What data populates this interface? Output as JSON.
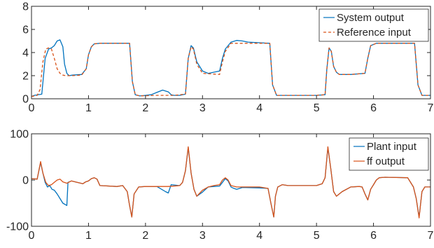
{
  "chart_data": [
    {
      "type": "line",
      "xlim": [
        0,
        7
      ],
      "ylim": [
        0,
        8
      ],
      "x_ticks": [
        0,
        1,
        2,
        3,
        4,
        5,
        6,
        7
      ],
      "y_ticks": [
        0,
        2,
        4,
        6,
        8
      ],
      "grid": false,
      "legend_position": "top-right",
      "series": [
        {
          "name": "System output",
          "color": "#0072BD",
          "style": "solid",
          "x": [
            0,
            0.05,
            0.18,
            0.24,
            0.3,
            0.35,
            0.4,
            0.45,
            0.5,
            0.55,
            0.58,
            0.62,
            0.66,
            0.72,
            0.88,
            0.96,
            1.0,
            1.05,
            1.1,
            1.2,
            1.5,
            1.72,
            1.77,
            1.82,
            1.9,
            2.0,
            2.1,
            2.2,
            2.3,
            2.4,
            2.45,
            2.5,
            2.6,
            2.7,
            2.75,
            2.8,
            2.84,
            2.9,
            3.0,
            3.1,
            3.3,
            3.35,
            3.4,
            3.5,
            3.6,
            3.7,
            3.8,
            4.0,
            4.18,
            4.23,
            4.3,
            4.5,
            5.0,
            5.15,
            5.18,
            5.22,
            5.26,
            5.3,
            5.35,
            5.4,
            5.5,
            5.6,
            5.85,
            5.9,
            5.95,
            6.05,
            6.2,
            6.5,
            6.72,
            6.78,
            6.85,
            7.0
          ],
          "y": [
            0.2,
            0.3,
            0.4,
            3.5,
            4.3,
            4.4,
            4.6,
            5.0,
            5.1,
            4.5,
            3.0,
            2.2,
            2.0,
            2.05,
            2.1,
            2.6,
            3.8,
            4.5,
            4.75,
            4.8,
            4.8,
            4.8,
            1.5,
            0.35,
            0.25,
            0.3,
            0.35,
            0.55,
            0.75,
            0.6,
            0.35,
            0.3,
            0.3,
            0.4,
            3.5,
            4.6,
            4.4,
            3.2,
            2.4,
            2.2,
            2.4,
            3.5,
            4.3,
            4.9,
            5.05,
            5.0,
            4.9,
            4.85,
            4.8,
            1.2,
            0.3,
            0.3,
            0.3,
            0.35,
            2.5,
            4.4,
            4.1,
            2.8,
            2.3,
            2.1,
            2.1,
            2.1,
            2.2,
            3.5,
            4.6,
            4.8,
            4.8,
            4.8,
            4.8,
            1.2,
            0.3,
            0.3
          ]
        },
        {
          "name": "Reference input",
          "color": "#D95319",
          "style": "dashed",
          "x": [
            0,
            0.1,
            0.15,
            0.2,
            0.25,
            0.3,
            0.35,
            0.4,
            0.45,
            0.5,
            0.55,
            0.6,
            0.7,
            0.88,
            0.96,
            1.0,
            1.05,
            1.1,
            1.2,
            1.5,
            1.72,
            1.77,
            1.82,
            1.9,
            2.2,
            2.4,
            2.5,
            2.7,
            2.75,
            2.8,
            2.84,
            2.9,
            3.0,
            3.3,
            3.35,
            3.4,
            3.5,
            4.0,
            4.18,
            4.23,
            4.3,
            5.0,
            5.15,
            5.18,
            5.22,
            5.26,
            5.3,
            5.35,
            5.4,
            5.6,
            5.85,
            5.9,
            5.95,
            6.05,
            6.2,
            6.72,
            6.78,
            6.85,
            7.0
          ],
          "y": [
            0.2,
            0.3,
            0.8,
            3.2,
            4.3,
            4.4,
            4.3,
            3.5,
            2.6,
            2.2,
            2.05,
            2.0,
            2.0,
            2.05,
            2.6,
            3.8,
            4.5,
            4.75,
            4.8,
            4.8,
            4.8,
            1.5,
            0.35,
            0.25,
            0.3,
            0.3,
            0.3,
            0.4,
            3.5,
            4.5,
            4.3,
            3.0,
            2.2,
            2.1,
            3.2,
            4.1,
            4.8,
            4.8,
            4.8,
            1.2,
            0.3,
            0.3,
            0.35,
            2.5,
            4.4,
            4.1,
            2.8,
            2.3,
            2.1,
            2.1,
            2.2,
            3.5,
            4.6,
            4.8,
            4.8,
            4.8,
            1.2,
            0.3,
            0.3
          ]
        }
      ]
    },
    {
      "type": "line",
      "xlim": [
        0,
        7
      ],
      "ylim": [
        -100,
        100
      ],
      "x_ticks": [
        0,
        1,
        2,
        3,
        4,
        5,
        6,
        7
      ],
      "y_ticks": [
        -100,
        0,
        100
      ],
      "grid": false,
      "legend_position": "top-right",
      "series": [
        {
          "name": "Plant input",
          "color": "#0072BD",
          "style": "solid",
          "x": [
            0,
            0.1,
            0.16,
            0.2,
            0.24,
            0.28,
            0.32,
            0.36,
            0.4,
            0.45,
            0.5,
            0.55,
            0.62,
            0.64,
            0.7,
            0.8,
            0.9,
            0.95,
            1.0,
            1.05,
            1.1,
            1.15,
            1.2,
            1.5,
            1.6,
            1.68,
            1.72,
            1.76,
            1.8,
            1.88,
            2.0,
            2.2,
            2.35,
            2.4,
            2.45,
            2.6,
            2.65,
            2.7,
            2.75,
            2.8,
            2.85,
            2.9,
            3.0,
            3.1,
            3.2,
            3.3,
            3.35,
            3.4,
            3.45,
            3.5,
            3.55,
            3.6,
            3.7,
            4.0,
            4.15,
            4.2,
            4.25,
            4.28,
            4.32,
            4.4,
            4.5,
            5.0,
            5.1,
            5.15,
            5.2,
            5.25,
            5.3,
            5.35,
            5.45,
            5.6,
            5.75,
            5.8,
            5.85,
            5.9,
            5.95,
            6.0,
            6.05,
            6.1,
            6.2,
            6.6,
            6.7,
            6.75,
            6.8,
            6.85,
            6.9,
            7.0
          ],
          "y": [
            3,
            2,
            38,
            15,
            -5,
            -15,
            -12,
            -20,
            -22,
            -30,
            -40,
            -50,
            -55,
            -5,
            -2,
            -5,
            -8,
            -4,
            -2,
            3,
            5,
            2,
            -12,
            -14,
            -12,
            -25,
            -55,
            -80,
            -30,
            -15,
            -14,
            -14,
            -25,
            -28,
            -10,
            -12,
            -5,
            20,
            70,
            15,
            -20,
            -35,
            -26,
            -15,
            -14,
            -13,
            -5,
            3,
            -2,
            -15,
            -18,
            -20,
            -16,
            -17,
            -18,
            -50,
            -80,
            -35,
            -15,
            -10,
            -12,
            -12,
            -8,
            5,
            70,
            25,
            -25,
            -35,
            -25,
            -15,
            -14,
            -15,
            -30,
            -43,
            -20,
            -10,
            0,
            5,
            6,
            5,
            -15,
            -40,
            -80,
            -25,
            -15,
            -15
          ]
        },
        {
          "name": "ff output",
          "color": "#D95319",
          "style": "solid",
          "x": [
            0,
            0.1,
            0.16,
            0.2,
            0.25,
            0.3,
            0.35,
            0.4,
            0.45,
            0.5,
            0.55,
            0.6,
            0.62,
            0.7,
            0.8,
            0.9,
            0.95,
            1.0,
            1.05,
            1.1,
            1.15,
            1.2,
            1.5,
            1.6,
            1.68,
            1.72,
            1.76,
            1.8,
            1.88,
            2.0,
            2.4,
            2.6,
            2.65,
            2.7,
            2.75,
            2.8,
            2.85,
            2.9,
            3.0,
            3.1,
            3.2,
            3.3,
            3.35,
            3.4,
            3.45,
            3.5,
            3.6,
            4.0,
            4.15,
            4.2,
            4.25,
            4.28,
            4.32,
            4.4,
            4.5,
            5.0,
            5.1,
            5.15,
            5.2,
            5.25,
            5.3,
            5.35,
            5.45,
            5.6,
            5.75,
            5.8,
            5.85,
            5.9,
            5.95,
            6.0,
            6.05,
            6.1,
            6.2,
            6.6,
            6.7,
            6.75,
            6.8,
            6.85,
            6.9,
            7.0
          ],
          "y": [
            3,
            2,
            40,
            15,
            -5,
            -12,
            -10,
            -5,
            0,
            2,
            -4,
            -6,
            -7,
            -2,
            -5,
            -8,
            -4,
            -2,
            3,
            5,
            2,
            -12,
            -14,
            -12,
            -25,
            -55,
            -80,
            -30,
            -15,
            -14,
            -14,
            -12,
            -5,
            20,
            72,
            15,
            -20,
            -35,
            -22,
            -15,
            -12,
            -10,
            0,
            5,
            0,
            -12,
            -15,
            -15,
            -18,
            -50,
            -80,
            -35,
            -15,
            -10,
            -12,
            -12,
            -8,
            5,
            72,
            25,
            -25,
            -35,
            -25,
            -15,
            -14,
            -15,
            -30,
            -43,
            -20,
            -10,
            0,
            5,
            6,
            5,
            -15,
            -40,
            -82,
            -25,
            -15,
            -15
          ]
        }
      ]
    }
  ]
}
